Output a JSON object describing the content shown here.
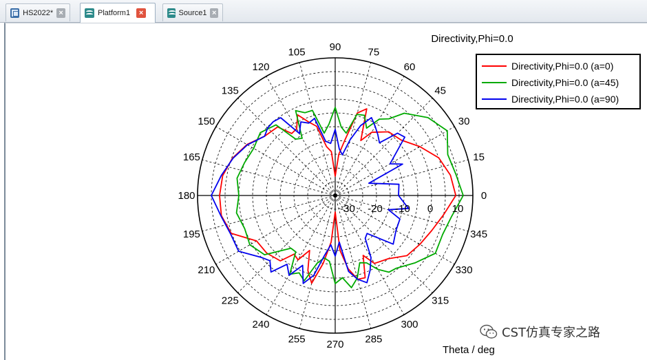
{
  "tabs": [
    {
      "label": "HS2022*",
      "icon": "hs-project-icon",
      "active": false
    },
    {
      "label": "Platform1",
      "icon": "platform-icon",
      "active": true
    },
    {
      "label": "Source1",
      "icon": "platform-icon",
      "active": false
    }
  ],
  "chart_data": {
    "type": "polar-line",
    "title": "Directivity,Phi=0.0",
    "xlabel": "Theta / deg",
    "angle_ticks": [
      "0",
      "15",
      "30",
      "45",
      "60",
      "75",
      "90",
      "105",
      "120",
      "135",
      "150",
      "165",
      "180",
      "195",
      "210",
      "225",
      "240",
      "255",
      "270",
      "285",
      "300",
      "315",
      "330",
      "345"
    ],
    "radial_ticks": [
      "-30",
      "-20",
      "-10",
      "0",
      "10"
    ],
    "rlim": [
      -35,
      15
    ],
    "legend": "top-right",
    "series": [
      {
        "name": "Directivity,Phi=0.0 (a=0)",
        "color": "#ff0000",
        "angles": [
          0,
          10,
          20,
          30,
          40,
          50,
          60,
          65,
          70,
          75,
          80,
          85,
          90,
          95,
          100,
          105,
          110,
          115,
          120,
          125,
          130,
          140,
          150,
          160,
          170,
          180,
          190,
          200,
          210,
          220,
          230,
          235,
          240,
          245,
          250,
          255,
          260,
          265,
          270,
          275,
          280,
          285,
          290,
          295,
          300,
          310,
          320,
          330,
          340,
          350,
          360
        ],
        "r": [
          8.8,
          7.5,
          5,
          0.5,
          -3.7,
          -4.8,
          -8.5,
          -13,
          -1.5,
          -4,
          -14.5,
          -20,
          -28,
          -19,
          -17,
          -9,
          -6.5,
          -2.7,
          -7,
          -7.5,
          -2.5,
          -1.5,
          2,
          4.7,
          6.5,
          7,
          7,
          5.2,
          -2,
          -2.5,
          -4,
          -9,
          -8,
          -13,
          -6,
          -2,
          -10,
          -18,
          -29,
          -15,
          -8,
          -3.5,
          -3.2,
          -11,
          -6.5,
          -5,
          -1,
          0.5,
          2.3,
          5,
          8.8
        ]
      },
      {
        "name": "Directivity,Phi=0.0 (a=45)",
        "color": "#00aa00",
        "angles": [
          0,
          10,
          20,
          30,
          40,
          50,
          55,
          60,
          65,
          70,
          75,
          80,
          85,
          90,
          95,
          100,
          105,
          110,
          115,
          120,
          125,
          130,
          140,
          150,
          160,
          170,
          180,
          190,
          200,
          210,
          220,
          230,
          235,
          240,
          245,
          250,
          255,
          260,
          265,
          270,
          275,
          280,
          285,
          290,
          295,
          300,
          305,
          310,
          320,
          330,
          340,
          350,
          360
        ],
        "r": [
          11.5,
          9.5,
          8.5,
          12,
          9,
          4,
          -1,
          -3,
          -8,
          -4,
          -4.5,
          -12,
          -10,
          -3,
          -9,
          -12,
          -3,
          -3,
          -1,
          -11,
          -10,
          -1.5,
          0.5,
          -0.8,
          0,
          1.2,
          0,
          1.4,
          0,
          0.8,
          -1.5,
          -10,
          -10,
          -2,
          -4,
          -2,
          -9.5,
          -12,
          -11,
          -3,
          -5,
          -1,
          -4,
          -9,
          -8,
          -4,
          -1,
          -0.5,
          3,
          7,
          6.5,
          8,
          11.5
        ]
      },
      {
        "name": "Directivity,Phi=0.0 (a=90)",
        "color": "#0000ee",
        "angles": [
          0,
          10,
          20,
          25,
          30,
          40,
          45,
          50,
          55,
          60,
          65,
          70,
          75,
          80,
          85,
          90,
          95,
          100,
          105,
          110,
          115,
          120,
          125,
          130,
          135,
          140,
          150,
          160,
          170,
          180,
          190,
          200,
          210,
          220,
          225,
          230,
          235,
          240,
          245,
          250,
          255,
          260,
          265,
          270,
          275,
          280,
          285,
          290,
          295,
          300,
          305,
          310,
          320,
          330,
          340,
          345,
          350,
          360
        ],
        "r": [
          -12,
          -11.5,
          -22,
          -8,
          -12,
          -2,
          -3,
          -10,
          -8,
          -6,
          -3.8,
          -8,
          -14,
          -20,
          -18,
          -11,
          -16,
          -15,
          -6,
          -7,
          -5.5,
          -9,
          -0.5,
          0,
          -0.3,
          -1.5,
          1.8,
          4.5,
          7,
          10,
          7.2,
          5.5,
          5.5,
          0,
          -1.5,
          1.3,
          -4.5,
          -1.5,
          -7,
          -1,
          -5,
          -13,
          -17,
          -13,
          -18,
          -7,
          -3.5,
          -1.3,
          -5,
          -9,
          -16,
          -17,
          -7.5,
          -9.5,
          -10,
          -15,
          -8,
          -12
        ]
      }
    ]
  },
  "watermark": {
    "text": "CST仿真专家之路",
    "icon": "wechat-icon"
  },
  "colors": {
    "accent_red": "#ff0000",
    "accent_green": "#00aa00",
    "accent_blue": "#0000ee"
  }
}
